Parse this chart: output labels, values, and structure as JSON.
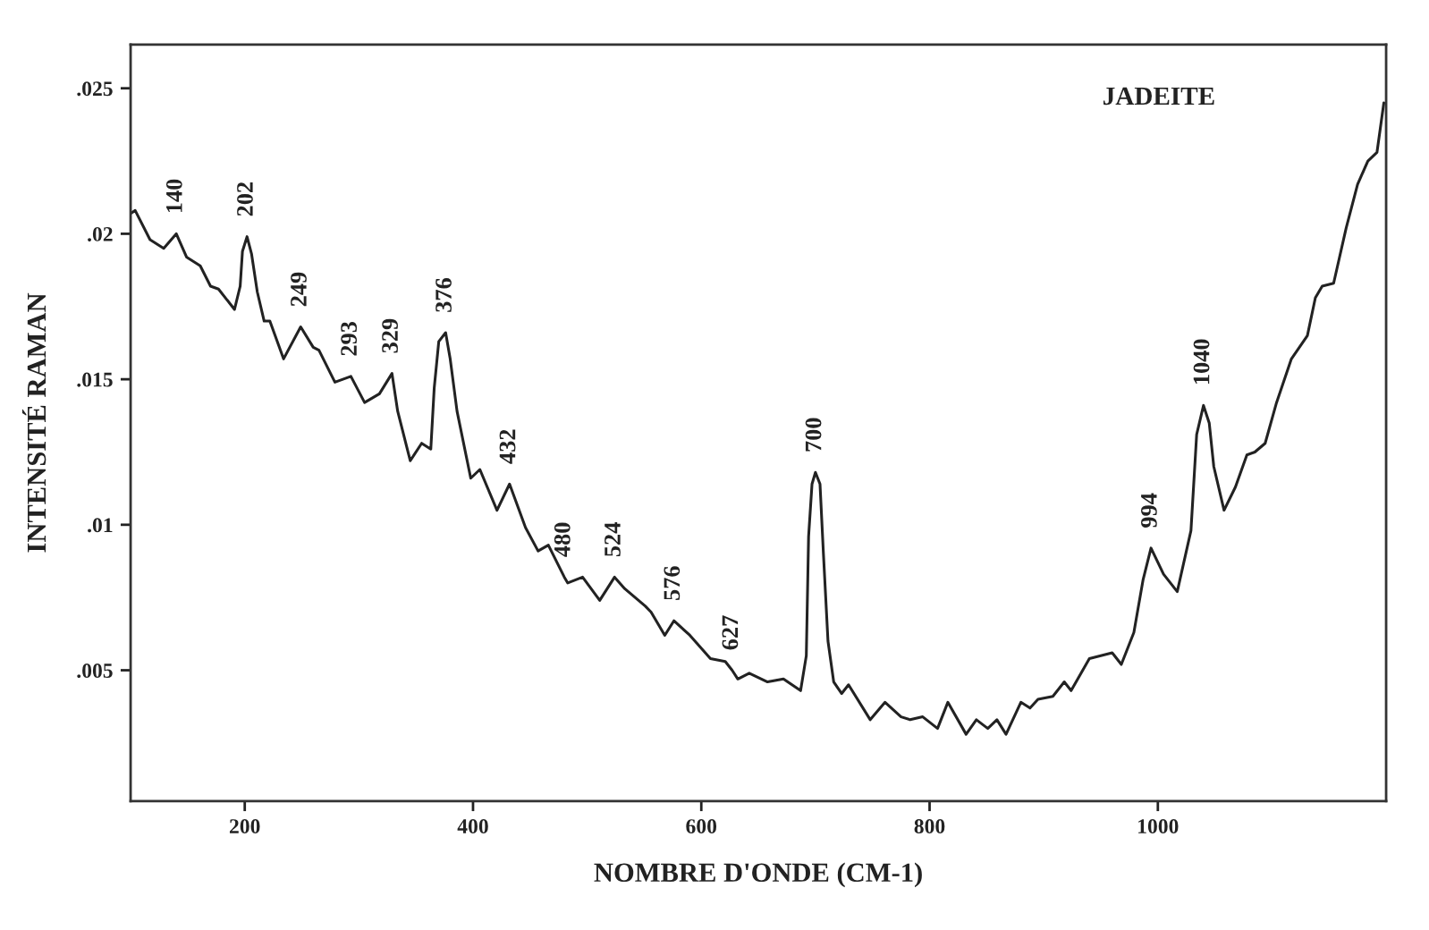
{
  "chart_data": {
    "type": "line",
    "title": "JADEITE",
    "xlabel": "NOMBRE D'ONDE (CM-1)",
    "ylabel": "INTENSITÉ RAMAN",
    "x": [
      100,
      104,
      117,
      129,
      140,
      149,
      157,
      161,
      170,
      177,
      191,
      196,
      198,
      202,
      206,
      211,
      217,
      222,
      234,
      249,
      260,
      265,
      279,
      293,
      305,
      318,
      329,
      334,
      345,
      355,
      363,
      366,
      370,
      376,
      380,
      386,
      398,
      406,
      421,
      432,
      446,
      457,
      466,
      480,
      483,
      496,
      511,
      524,
      533,
      551,
      556,
      568,
      576,
      590,
      608,
      621,
      627,
      632,
      642,
      658,
      672,
      687,
      692,
      694,
      697,
      700,
      704,
      707,
      711,
      716,
      723,
      729,
      748,
      761,
      775,
      783,
      794,
      807,
      816,
      832,
      841,
      851,
      859,
      867,
      880,
      888,
      895,
      908,
      918,
      924,
      940,
      950,
      960,
      968,
      979,
      987,
      994,
      1005,
      1017,
      1029,
      1034,
      1040,
      1045,
      1049,
      1058,
      1068,
      1078,
      1085,
      1094,
      1104,
      1117,
      1131,
      1138,
      1144,
      1154,
      1165,
      1175,
      1184,
      1192,
      1198
    ],
    "series": [
      {
        "color": "#222222",
        "values": [
          0.0207,
          0.0208,
          0.0198,
          0.0195,
          0.02,
          0.0192,
          0.019,
          0.0189,
          0.0182,
          0.0181,
          0.0174,
          0.0182,
          0.0194,
          0.0199,
          0.0193,
          0.018,
          0.017,
          0.017,
          0.0157,
          0.0168,
          0.0161,
          0.016,
          0.0149,
          0.0151,
          0.0142,
          0.0145,
          0.0152,
          0.0139,
          0.0122,
          0.0128,
          0.0126,
          0.0147,
          0.0163,
          0.0166,
          0.0157,
          0.0139,
          0.0116,
          0.0119,
          0.0105,
          0.0114,
          0.0099,
          0.0091,
          0.0093,
          0.0082,
          0.008,
          0.0082,
          0.0074,
          0.0082,
          0.0078,
          0.0072,
          0.007,
          0.0062,
          0.0067,
          0.0062,
          0.0054,
          0.0053,
          0.005,
          0.0047,
          0.0049,
          0.0046,
          0.0047,
          0.0043,
          0.0055,
          0.0096,
          0.0114,
          0.0118,
          0.0114,
          0.009,
          0.006,
          0.0046,
          0.0042,
          0.0045,
          0.0033,
          0.0039,
          0.0034,
          0.0033,
          0.0034,
          0.003,
          0.0039,
          0.0028,
          0.0033,
          0.003,
          0.0033,
          0.0028,
          0.0039,
          0.0037,
          0.004,
          0.0041,
          0.0046,
          0.0043,
          0.0054,
          0.0055,
          0.0056,
          0.0052,
          0.0063,
          0.0081,
          0.0092,
          0.0083,
          0.0077,
          0.0098,
          0.0131,
          0.0141,
          0.0135,
          0.012,
          0.0105,
          0.0113,
          0.0124,
          0.0125,
          0.0128,
          0.0142,
          0.0157,
          0.0165,
          0.0178,
          0.0182,
          0.0183,
          0.0202,
          0.0217,
          0.0225,
          0.0228,
          0.0245
        ]
      }
    ],
    "xlim": [
      100,
      1200
    ],
    "ylim": [
      0.0005,
      0.0265
    ],
    "xticks": [
      200,
      400,
      600,
      800,
      1000
    ],
    "yticks": [
      {
        "value": 0.005,
        "label": ".005"
      },
      {
        "value": 0.01,
        "label": ".01"
      },
      {
        "value": 0.015,
        "label": ".015"
      },
      {
        "value": 0.02,
        "label": ".02"
      },
      {
        "value": 0.025,
        "label": ".025"
      }
    ],
    "annotations": [
      {
        "text": "140",
        "x": 140,
        "y": 0.02
      },
      {
        "text": "202",
        "x": 202,
        "y": 0.0199
      },
      {
        "text": "249",
        "x": 249,
        "y": 0.0168
      },
      {
        "text": "293",
        "x": 293,
        "y": 0.0151
      },
      {
        "text": "329",
        "x": 329,
        "y": 0.0152
      },
      {
        "text": "376",
        "x": 376,
        "y": 0.0166
      },
      {
        "text": "432",
        "x": 432,
        "y": 0.0114
      },
      {
        "text": "480",
        "x": 480,
        "y": 0.0082
      },
      {
        "text": "524",
        "x": 524,
        "y": 0.0082
      },
      {
        "text": "576",
        "x": 576,
        "y": 0.0067
      },
      {
        "text": "627",
        "x": 627,
        "y": 0.005
      },
      {
        "text": "700",
        "x": 700,
        "y": 0.0118
      },
      {
        "text": "994",
        "x": 994,
        "y": 0.0092
      },
      {
        "text": "1040",
        "x": 1040,
        "y": 0.0141
      }
    ],
    "line_style": "solid"
  }
}
